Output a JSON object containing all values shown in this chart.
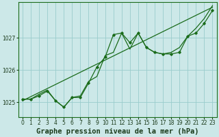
{
  "title": "Graphe pression niveau de la mer (hPa)",
  "background_color": "#cce8e8",
  "plot_bg_color": "#cce8e8",
  "line_color": "#1a6b1a",
  "grid_color": "#99cccc",
  "text_color": "#1a3a1a",
  "xlim": [
    -0.5,
    23.5
  ],
  "ylim": [
    1024.55,
    1028.1
  ],
  "yticks": [
    1025,
    1026,
    1027
  ],
  "xticks": [
    0,
    1,
    2,
    3,
    4,
    5,
    6,
    7,
    8,
    9,
    10,
    11,
    12,
    13,
    14,
    15,
    16,
    17,
    18,
    19,
    20,
    21,
    22,
    23
  ],
  "line_jagged_x": [
    0,
    1,
    2,
    3,
    4,
    5,
    6,
    7,
    8,
    9,
    10,
    11,
    12,
    13,
    14,
    15,
    16,
    17,
    18,
    19,
    20,
    21,
    22,
    23
  ],
  "line_jagged_y": [
    1025.1,
    1025.1,
    1025.2,
    1025.35,
    1025.05,
    1024.85,
    1025.15,
    1025.15,
    1025.6,
    1026.1,
    1026.4,
    1027.1,
    1027.15,
    1026.85,
    1027.15,
    1026.7,
    1026.55,
    1026.5,
    1026.5,
    1026.55,
    1027.05,
    1027.15,
    1027.45,
    1027.85
  ],
  "line_smooth_x": [
    0,
    1,
    2,
    3,
    4,
    5,
    6,
    7,
    8,
    9,
    10,
    11,
    12,
    13,
    14,
    15,
    16,
    17,
    18,
    19,
    20,
    21,
    22,
    23
  ],
  "line_smooth_y": [
    1025.1,
    1025.1,
    1025.25,
    1025.38,
    1025.05,
    1024.85,
    1025.15,
    1025.2,
    1025.65,
    1025.8,
    1026.45,
    1026.55,
    1027.15,
    1026.65,
    1027.15,
    1026.7,
    1026.55,
    1026.5,
    1026.55,
    1026.7,
    1027.05,
    1027.3,
    1027.6,
    1028.0
  ],
  "line_trend_x": [
    0,
    23
  ],
  "line_trend_y": [
    1025.05,
    1027.95
  ],
  "title_fontsize": 7.5,
  "tick_fontsize": 5.5
}
